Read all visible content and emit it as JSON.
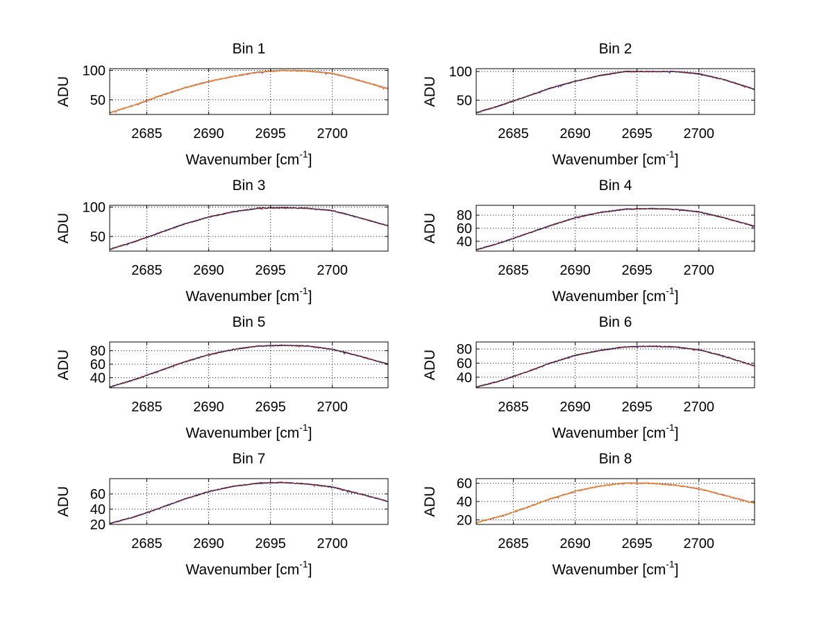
{
  "chart_data": [
    {
      "type": "line",
      "title": "Bin 1",
      "xlabel": "Wavenumber [cm",
      "xlabel_sup": "-1",
      "xlabel_suffix": "]",
      "ylabel": "ADU",
      "xlim": [
        2682,
        2704.5
      ],
      "ylim": [
        25,
        103
      ],
      "xticks": [
        2685,
        2690,
        2695,
        2700
      ],
      "yticks": [
        50,
        100
      ],
      "grid": true,
      "series": [
        {
          "name": "blue",
          "color": "#1a1aff",
          "x": [
            2682,
            2684,
            2686,
            2688,
            2690,
            2692,
            2694,
            2696,
            2698,
            2700,
            2702,
            2704.5
          ],
          "values": [
            28,
            41,
            56,
            70,
            81,
            90,
            97,
            100,
            99,
            95,
            84,
            69
          ]
        },
        {
          "name": "red",
          "color": "#ff2a2a",
          "x": [
            2682,
            2684,
            2686,
            2688,
            2690,
            2692,
            2694,
            2696,
            2698,
            2700,
            2702,
            2704.5
          ],
          "values": [
            28,
            41,
            56,
            70,
            81,
            90,
            97,
            100,
            99,
            95,
            84,
            69
          ]
        },
        {
          "name": "orange",
          "color": "#f5a000",
          "x": [
            2682,
            2684,
            2686,
            2688,
            2690,
            2692,
            2694,
            2696,
            2698,
            2700,
            2702,
            2704.5
          ],
          "values": [
            28,
            41,
            56,
            70,
            81,
            90,
            97,
            100,
            99,
            95,
            84,
            69
          ]
        }
      ]
    },
    {
      "type": "line",
      "title": "Bin 2",
      "xlabel": "Wavenumber [cm",
      "xlabel_sup": "-1",
      "xlabel_suffix": "]",
      "ylabel": "ADU",
      "xlim": [
        2682,
        2704.5
      ],
      "ylim": [
        25,
        105
      ],
      "xticks": [
        2685,
        2690,
        2695,
        2700
      ],
      "yticks": [
        50,
        100
      ],
      "grid": true,
      "series": [
        {
          "name": "blue",
          "color": "#1a1aff",
          "x": [
            2682,
            2684,
            2686,
            2688,
            2690,
            2692,
            2694,
            2696,
            2698,
            2700,
            2702,
            2704.5
          ],
          "values": [
            28,
            41,
            56,
            71,
            83,
            93,
            100,
            100,
            100,
            96,
            86,
            69
          ]
        },
        {
          "name": "red",
          "color": "#ff2a2a",
          "x": [
            2682,
            2684,
            2686,
            2688,
            2690,
            2692,
            2694,
            2696,
            2698,
            2700,
            2702,
            2704.5
          ],
          "values": [
            28,
            41,
            56,
            71,
            83,
            93,
            100,
            100,
            100,
            96,
            86,
            69
          ]
        },
        {
          "name": "black",
          "color": "#202020",
          "x": [
            2682,
            2684,
            2686,
            2688,
            2690,
            2692,
            2694,
            2696,
            2698,
            2700,
            2702,
            2704.5
          ],
          "values": [
            28,
            41,
            56,
            71,
            83,
            93,
            100,
            100,
            100,
            96,
            86,
            69
          ]
        }
      ]
    },
    {
      "type": "line",
      "title": "Bin 3",
      "xlabel": "Wavenumber [cm",
      "xlabel_sup": "-1",
      "xlabel_suffix": "]",
      "ylabel": "ADU",
      "xlim": [
        2682,
        2704.5
      ],
      "ylim": [
        25,
        103
      ],
      "xticks": [
        2685,
        2690,
        2695,
        2700
      ],
      "yticks": [
        50,
        100
      ],
      "grid": true,
      "series": [
        {
          "name": "blue",
          "color": "#1a1aff",
          "x": [
            2682,
            2684,
            2686,
            2688,
            2690,
            2692,
            2694,
            2696,
            2698,
            2700,
            2702,
            2704.5
          ],
          "values": [
            28,
            41,
            56,
            71,
            83,
            92,
            98,
            99,
            98,
            94,
            83,
            68
          ]
        },
        {
          "name": "red",
          "color": "#ff2a2a",
          "x": [
            2682,
            2684,
            2686,
            2688,
            2690,
            2692,
            2694,
            2696,
            2698,
            2700,
            2702,
            2704.5
          ],
          "values": [
            28,
            41,
            56,
            71,
            83,
            92,
            98,
            99,
            98,
            94,
            83,
            68
          ]
        },
        {
          "name": "black",
          "color": "#202020",
          "x": [
            2682,
            2684,
            2686,
            2688,
            2690,
            2692,
            2694,
            2696,
            2698,
            2700,
            2702,
            2704.5
          ],
          "values": [
            28,
            41,
            56,
            71,
            83,
            92,
            98,
            99,
            98,
            94,
            83,
            68
          ]
        }
      ]
    },
    {
      "type": "line",
      "title": "Bin 4",
      "xlabel": "Wavenumber [cm",
      "xlabel_sup": "-1",
      "xlabel_suffix": "]",
      "ylabel": "ADU",
      "xlim": [
        2682,
        2704.5
      ],
      "ylim": [
        25,
        95
      ],
      "xticks": [
        2685,
        2690,
        2695,
        2700
      ],
      "yticks": [
        40,
        60,
        80
      ],
      "grid": true,
      "series": [
        {
          "name": "blue",
          "color": "#1a1aff",
          "x": [
            2682,
            2684,
            2686,
            2688,
            2690,
            2692,
            2694,
            2696,
            2698,
            2700,
            2702,
            2704.5
          ],
          "values": [
            27,
            38,
            51,
            64,
            76,
            84,
            89,
            90,
            89,
            85,
            76,
            63
          ]
        },
        {
          "name": "red",
          "color": "#ff2a2a",
          "x": [
            2682,
            2684,
            2686,
            2688,
            2690,
            2692,
            2694,
            2696,
            2698,
            2700,
            2702,
            2704.5
          ],
          "values": [
            27,
            38,
            51,
            64,
            76,
            84,
            89,
            90,
            89,
            85,
            76,
            63
          ]
        },
        {
          "name": "black",
          "color": "#202020",
          "x": [
            2682,
            2684,
            2686,
            2688,
            2690,
            2692,
            2694,
            2696,
            2698,
            2700,
            2702,
            2704.5
          ],
          "values": [
            27,
            38,
            51,
            64,
            76,
            84,
            89,
            90,
            89,
            85,
            76,
            63
          ]
        }
      ]
    },
    {
      "type": "line",
      "title": "Bin 5",
      "xlabel": "Wavenumber [cm",
      "xlabel_sup": "-1",
      "xlabel_suffix": "]",
      "ylabel": "ADU",
      "xlim": [
        2682,
        2704.5
      ],
      "ylim": [
        25,
        93
      ],
      "xticks": [
        2685,
        2690,
        2695,
        2700
      ],
      "yticks": [
        40,
        60,
        80
      ],
      "grid": true,
      "series": [
        {
          "name": "blue",
          "color": "#1a1aff",
          "x": [
            2682,
            2684,
            2686,
            2688,
            2690,
            2692,
            2694,
            2696,
            2698,
            2700,
            2702,
            2704.5
          ],
          "values": [
            26,
            37,
            50,
            63,
            74,
            82,
            87,
            88,
            87,
            82,
            73,
            60
          ]
        },
        {
          "name": "red",
          "color": "#ff2a2a",
          "x": [
            2682,
            2684,
            2686,
            2688,
            2690,
            2692,
            2694,
            2696,
            2698,
            2700,
            2702,
            2704.5
          ],
          "values": [
            26,
            37,
            50,
            63,
            74,
            82,
            87,
            88,
            87,
            82,
            73,
            60
          ]
        },
        {
          "name": "black",
          "color": "#202020",
          "x": [
            2682,
            2684,
            2686,
            2688,
            2690,
            2692,
            2694,
            2696,
            2698,
            2700,
            2702,
            2704.5
          ],
          "values": [
            26,
            37,
            50,
            63,
            74,
            82,
            87,
            88,
            87,
            82,
            73,
            60
          ]
        }
      ]
    },
    {
      "type": "line",
      "title": "Bin 6",
      "xlabel": "Wavenumber [cm",
      "xlabel_sup": "-1",
      "xlabel_suffix": "]",
      "ylabel": "ADU",
      "xlim": [
        2682,
        2704.5
      ],
      "ylim": [
        25,
        90
      ],
      "xticks": [
        2685,
        2690,
        2695,
        2700
      ],
      "yticks": [
        40,
        60,
        80
      ],
      "grid": true,
      "series": [
        {
          "name": "blue",
          "color": "#1a1aff",
          "x": [
            2682,
            2684,
            2686,
            2688,
            2690,
            2692,
            2694,
            2696,
            2698,
            2700,
            2702,
            2704.5
          ],
          "values": [
            26,
            35,
            47,
            60,
            71,
            78,
            83,
            84,
            83,
            79,
            70,
            56
          ]
        },
        {
          "name": "red",
          "color": "#ff2a2a",
          "x": [
            2682,
            2684,
            2686,
            2688,
            2690,
            2692,
            2694,
            2696,
            2698,
            2700,
            2702,
            2704.5
          ],
          "values": [
            26,
            35,
            47,
            60,
            71,
            78,
            83,
            84,
            83,
            79,
            70,
            56
          ]
        },
        {
          "name": "black",
          "color": "#202020",
          "x": [
            2682,
            2684,
            2686,
            2688,
            2690,
            2692,
            2694,
            2696,
            2698,
            2700,
            2702,
            2704.5
          ],
          "values": [
            26,
            35,
            47,
            60,
            71,
            78,
            83,
            84,
            83,
            79,
            70,
            56
          ]
        }
      ]
    },
    {
      "type": "line",
      "title": "Bin 7",
      "xlabel": "Wavenumber [cm",
      "xlabel_sup": "-1",
      "xlabel_suffix": "]",
      "ylabel": "ADU",
      "xlim": [
        2682,
        2704.5
      ],
      "ylim": [
        20,
        80
      ],
      "xticks": [
        2685,
        2690,
        2695,
        2700
      ],
      "yticks": [
        20,
        40,
        60
      ],
      "grid": true,
      "series": [
        {
          "name": "blue",
          "color": "#1a1aff",
          "x": [
            2682,
            2684,
            2686,
            2688,
            2690,
            2692,
            2694,
            2696,
            2698,
            2700,
            2702,
            2704.5
          ],
          "values": [
            21,
            30,
            41,
            53,
            63,
            70,
            74,
            75,
            73,
            69,
            61,
            50
          ]
        },
        {
          "name": "red",
          "color": "#ff2a2a",
          "x": [
            2682,
            2684,
            2686,
            2688,
            2690,
            2692,
            2694,
            2696,
            2698,
            2700,
            2702,
            2704.5
          ],
          "values": [
            21,
            30,
            41,
            53,
            63,
            70,
            74,
            75,
            73,
            69,
            61,
            50
          ]
        },
        {
          "name": "black",
          "color": "#202020",
          "x": [
            2682,
            2684,
            2686,
            2688,
            2690,
            2692,
            2694,
            2696,
            2698,
            2700,
            2702,
            2704.5
          ],
          "values": [
            21,
            30,
            41,
            53,
            63,
            70,
            74,
            75,
            73,
            69,
            61,
            50
          ]
        }
      ]
    },
    {
      "type": "line",
      "title": "Bin 8",
      "xlabel": "Wavenumber [cm",
      "xlabel_sup": "-1",
      "xlabel_suffix": "]",
      "ylabel": "ADU",
      "xlim": [
        2682,
        2704.5
      ],
      "ylim": [
        15,
        65
      ],
      "xticks": [
        2685,
        2690,
        2695,
        2700
      ],
      "yticks": [
        20,
        40,
        60
      ],
      "grid": true,
      "series": [
        {
          "name": "blue",
          "color": "#1a1aff",
          "x": [
            2682,
            2684,
            2686,
            2688,
            2690,
            2692,
            2694,
            2696,
            2698,
            2700,
            2702,
            2704.5
          ],
          "values": [
            17,
            24,
            33,
            43,
            51,
            57,
            60,
            60,
            58,
            54,
            47,
            38
          ]
        },
        {
          "name": "red",
          "color": "#ff2a2a",
          "x": [
            2682,
            2684,
            2686,
            2688,
            2690,
            2692,
            2694,
            2696,
            2698,
            2700,
            2702,
            2704.5
          ],
          "values": [
            17,
            24,
            33,
            43,
            51,
            57,
            60,
            60,
            58,
            54,
            47,
            38
          ]
        },
        {
          "name": "orange",
          "color": "#f5a000",
          "x": [
            2682,
            2684,
            2686,
            2688,
            2690,
            2692,
            2694,
            2696,
            2698,
            2700,
            2702,
            2704.5
          ],
          "values": [
            17,
            24,
            33,
            43,
            51,
            57,
            60,
            60,
            58,
            54,
            47,
            38
          ]
        }
      ]
    }
  ]
}
